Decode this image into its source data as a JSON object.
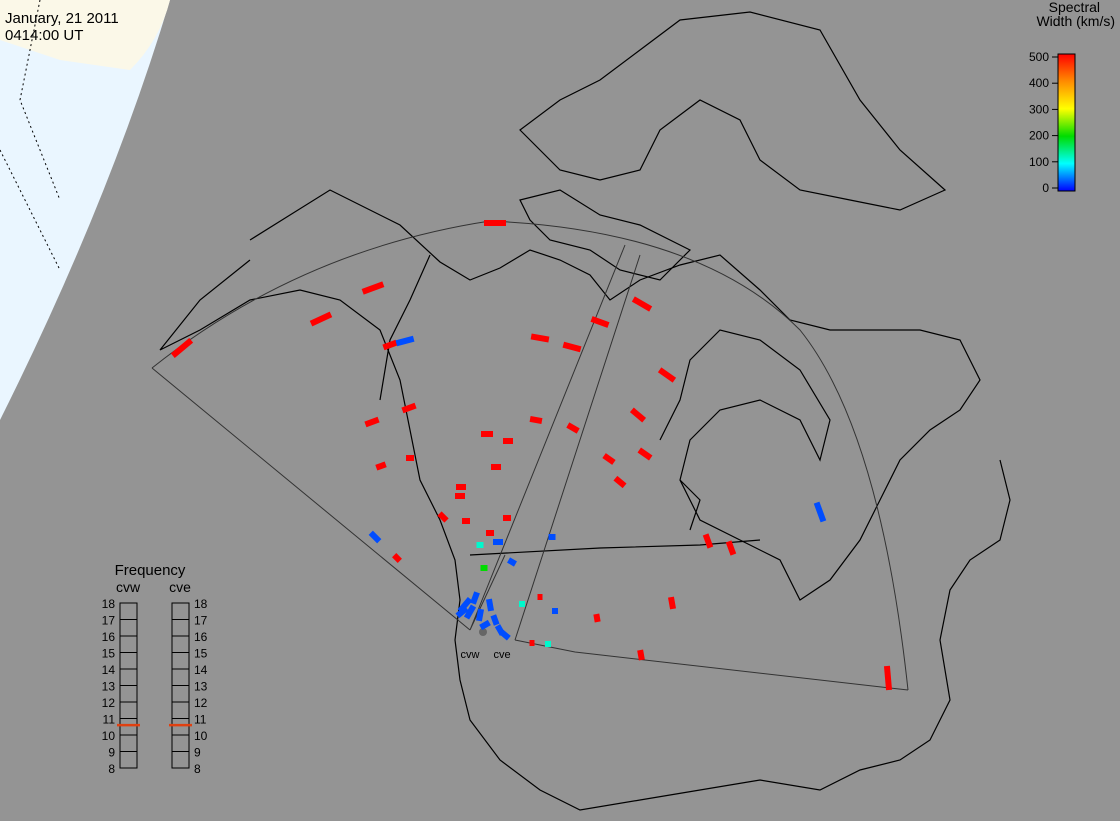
{
  "header": {
    "date": "January, 21 2011",
    "time": "0414:00 UT"
  },
  "colorbar": {
    "title_line1": "Spectral",
    "title_line2": "Width (km/s)",
    "ticks": [
      0,
      100,
      200,
      300,
      400,
      500
    ]
  },
  "frequency": {
    "title": "Frequency",
    "radars": [
      "cvw",
      "cve"
    ],
    "ticks": [
      8,
      9,
      10,
      11,
      12,
      13,
      14,
      15,
      16,
      17,
      18
    ],
    "values": [
      10.6,
      10.6
    ]
  },
  "radar_labels": [
    "cvw",
    "cve"
  ],
  "echoes": [
    500,
    500,
    500,
    500,
    500,
    30,
    500,
    500,
    500,
    500,
    500,
    500,
    500,
    500,
    500,
    500,
    500,
    500,
    500,
    500,
    500,
    500,
    500,
    500,
    500,
    500,
    500,
    500,
    500,
    500,
    30,
    30,
    500,
    30,
    500,
    500,
    500,
    500,
    500,
    30,
    500,
    120,
    30,
    200,
    30,
    120,
    120,
    500,
    500,
    30,
    30,
    30,
    30,
    30,
    30,
    30,
    30,
    30,
    30
  ]
}
